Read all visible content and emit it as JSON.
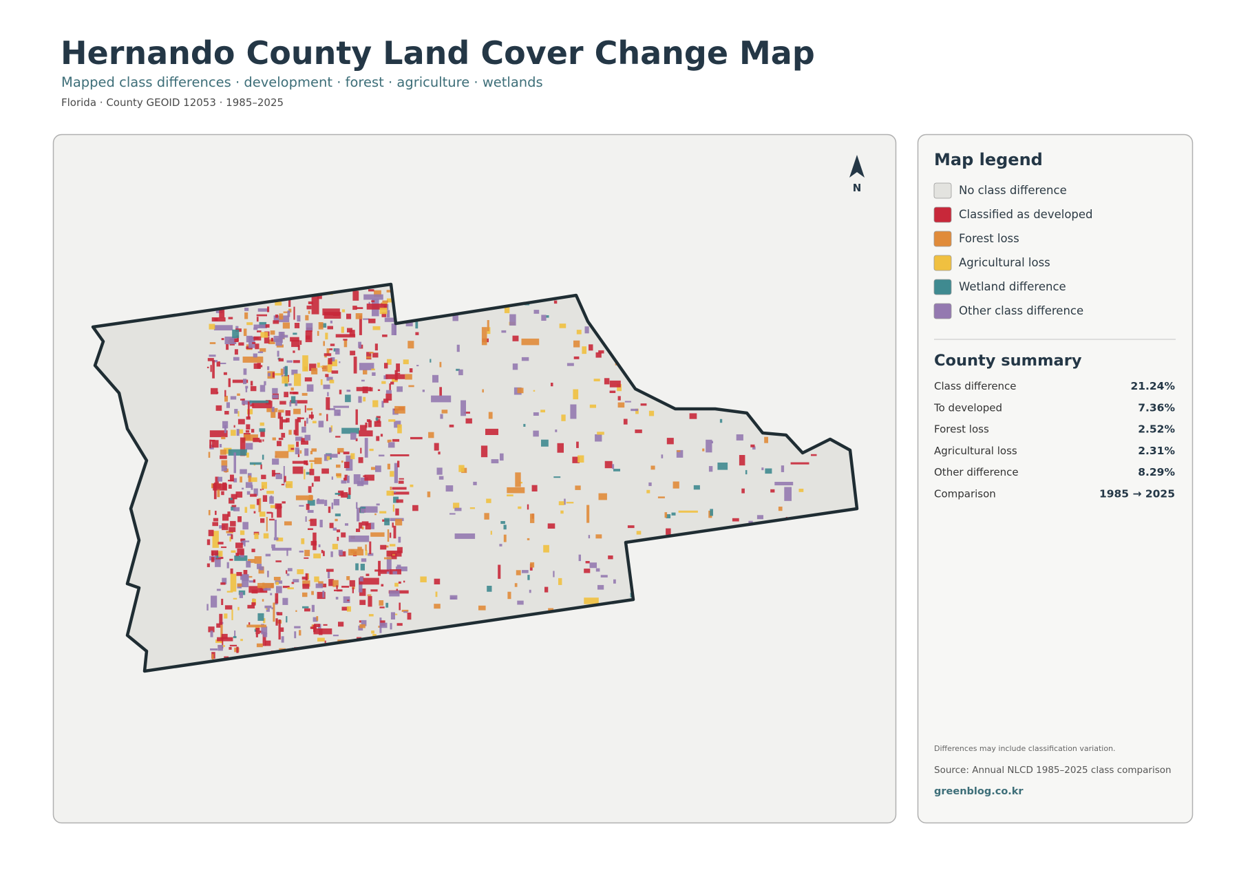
{
  "header": {
    "title": "Hernando County Land Cover Change Map",
    "subtitle": "Mapped class differences · development · forest · agriculture · wetlands",
    "meta": "Florida · County GEOID 12053 · 1985–2025"
  },
  "map": {
    "north_label": "N"
  },
  "legend": {
    "title": "Map legend",
    "items": [
      {
        "label": "No class difference",
        "color": "#e3e3df"
      },
      {
        "label": "Classified as developed",
        "color": "#c8283a"
      },
      {
        "label": "Forest loss",
        "color": "#e08b3a"
      },
      {
        "label": "Agricultural loss",
        "color": "#f0c040"
      },
      {
        "label": "Wetland difference",
        "color": "#3f8a90"
      },
      {
        "label": "Other class difference",
        "color": "#9479b0"
      }
    ]
  },
  "summary": {
    "title": "County summary",
    "rows": [
      {
        "label": "Class difference",
        "value": "21.24%"
      },
      {
        "label": "To developed",
        "value": "7.36%"
      },
      {
        "label": "Forest loss",
        "value": "2.52%"
      },
      {
        "label": "Agricultural loss",
        "value": "2.31%"
      },
      {
        "label": "Other difference",
        "value": "8.29%"
      },
      {
        "label": "Comparison",
        "value": "1985 → 2025"
      }
    ]
  },
  "footer": {
    "note": "Differences may include classification variation.",
    "source": "Source: Annual NLCD 1985–2025 class comparison",
    "link": "greenblog.co.kr"
  }
}
